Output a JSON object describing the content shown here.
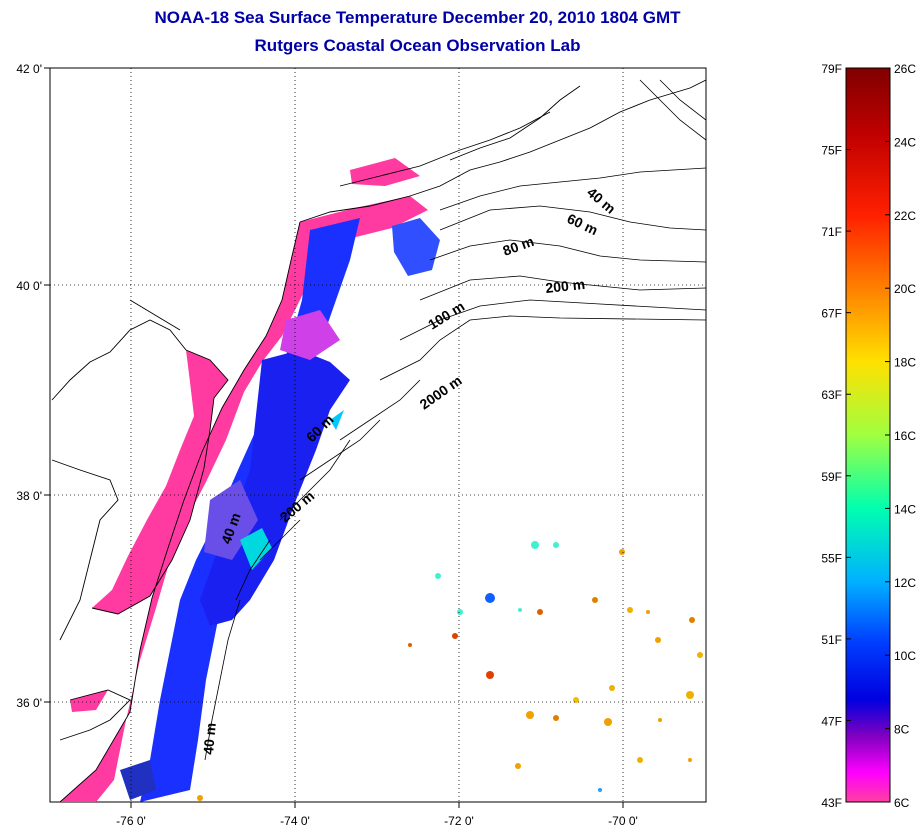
{
  "title_line1": "NOAA-18 Sea Surface Temperature December 20, 2010 1804 GMT",
  "title_line2": "Rutgers Coastal Ocean Observation Lab",
  "map": {
    "lat_ticks": [
      "42 0'",
      "40 0'",
      "38 0'",
      "36 0'"
    ],
    "lon_ticks": [
      "-76 0'",
      "-74 0'",
      "-72 0'",
      "-70 0'"
    ],
    "isobath_labels": [
      "40 m",
      "60 m",
      "80 m",
      "200 m",
      "100 m",
      "2000 m",
      "60 m",
      "200 m",
      "40 m",
      "40 m"
    ]
  },
  "colorbar": {
    "f_labels": [
      "79F",
      "75F",
      "71F",
      "67F",
      "63F",
      "59F",
      "55F",
      "51F",
      "47F",
      "43F"
    ],
    "c_labels": [
      "26C",
      "24C",
      "22C",
      "20C",
      "18C",
      "16C",
      "14C",
      "12C",
      "10C",
      "8C",
      "6C"
    ],
    "colors": [
      "#800000",
      "#c00000",
      "#ff2000",
      "#ff8000",
      "#ffe000",
      "#a0ff40",
      "#00ffb0",
      "#00b0ff",
      "#0040ff",
      "#0000e0",
      "#8000c0",
      "#ff00ff",
      "#ff40a0"
    ]
  }
}
